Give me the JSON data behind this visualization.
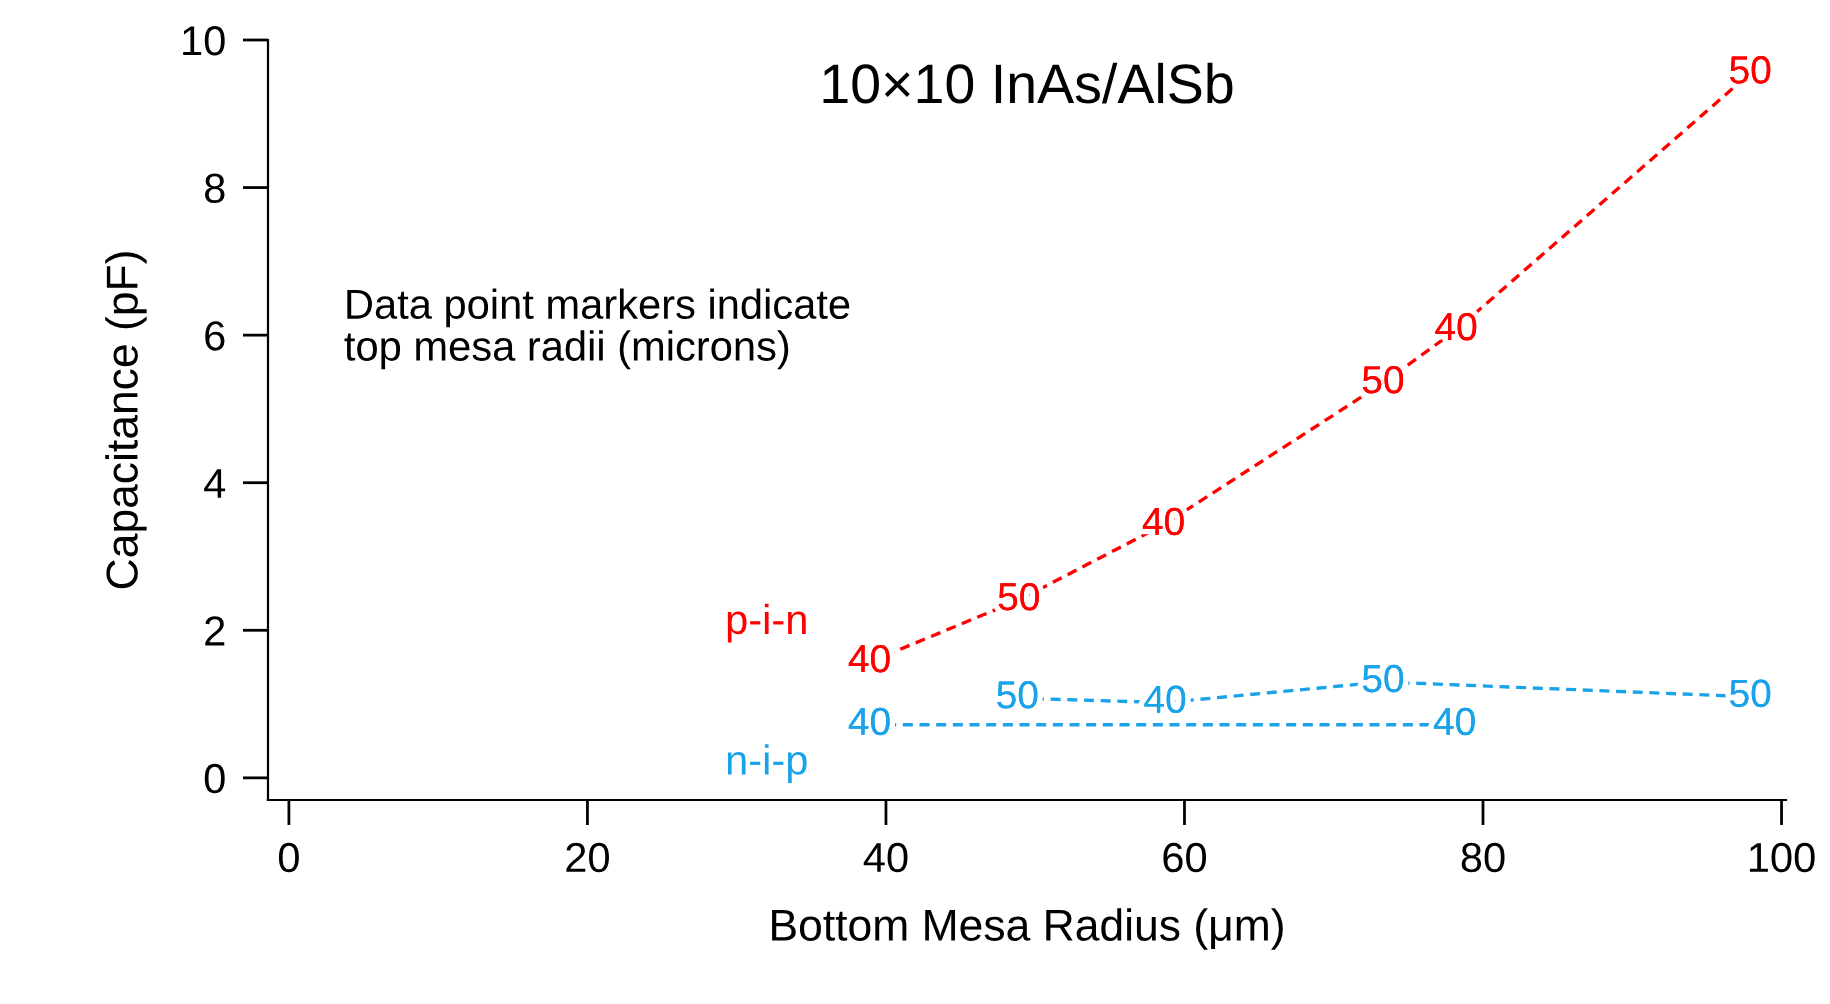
{
  "chart_data": {
    "type": "line",
    "title": "10×10 InAs/AlSb",
    "xlabel": "Bottom Mesa Radius (μm)",
    "ylabel": "Capacitance (pF)",
    "annotations": [
      "Data point markers indicate\ntop mesa radii (microns)",
      {
        "text": "40",
        "x": 38.9,
        "y": 1.57
      },
      {
        "text": "50",
        "x": 48.9,
        "y": 2.41
      },
      {
        "text": "40",
        "x": 58.6,
        "y": 3.43
      },
      {
        "text": "50",
        "x": 73.3,
        "y": 5.35
      },
      {
        "text": "40",
        "x": 78.2,
        "y": 6.07
      },
      {
        "text": "50",
        "x": 97.9,
        "y": 9.55
      },
      {
        "text": "40",
        "x": 38.9,
        "y": 0.72
      },
      {
        "text": "40",
        "x": 78.1,
        "y": 0.72
      },
      {
        "text": "50",
        "x": 48.8,
        "y": 1.08
      },
      {
        "text": "40",
        "x": 58.7,
        "y": 1.02
      },
      {
        "text": "50",
        "x": 73.3,
        "y": 1.3
      },
      {
        "text": "50",
        "x": 97.9,
        "y": 1.1
      }
    ],
    "series": [
      {
        "name": "p-i-n",
        "color": "#ff0000",
        "x": [
          38.9,
          48.9,
          58.6,
          73.3,
          78.2,
          97.9
        ],
        "values": [
          1.57,
          2.41,
          3.43,
          5.35,
          6.07,
          9.55
        ]
      },
      {
        "name": "n-i-p",
        "color": "#1aa3e8",
        "x": [
          38.9,
          78.1
        ],
        "values": [
          0.72,
          0.72
        ]
      },
      {
        "color": "#1aa3e8",
        "x": [
          48.8,
          58.7,
          73.3,
          97.9
        ],
        "values": [
          1.08,
          1.02,
          1.3,
          1.1
        ]
      }
    ],
    "xlim": [
      -1.4,
      100.3
    ],
    "ylim": [
      -0.3,
      10
    ],
    "xticks": [
      0,
      20,
      40,
      60,
      80,
      100
    ],
    "yticks": [
      0,
      2,
      4,
      6,
      8,
      10
    ],
    "marker": "none",
    "line_style": "dashed",
    "grid": false,
    "legend": false
  }
}
